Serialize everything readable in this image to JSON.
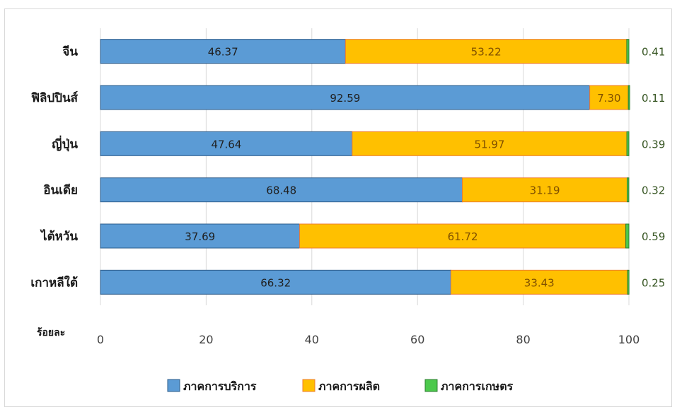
{
  "chart_data": {
    "type": "bar",
    "orientation": "horizontal",
    "stacked": true,
    "categories": [
      "จีน",
      "ฟิลิปปินส์",
      "ญี่ปุ่น",
      "อินเดีย",
      "ไต้หวัน",
      "เกาหลีใต้"
    ],
    "series": [
      {
        "name": "ภาคการบริการ",
        "values": [
          46.37,
          92.59,
          47.64,
          68.48,
          37.69,
          66.32
        ],
        "labels": [
          "46.37",
          "92.59",
          "47.64",
          "68.48",
          "37.69",
          "66.32"
        ],
        "color": "#5b9bd5",
        "stroke": "#2e5c8a",
        "label_color": "#1f1f1f"
      },
      {
        "name": "ภาคการผลิต",
        "values": [
          53.22,
          7.3,
          51.97,
          31.19,
          61.72,
          33.43
        ],
        "labels": [
          "53.22",
          "7.30",
          "51.97",
          "31.19",
          "61.72",
          "33.43"
        ],
        "color": "#ffc000",
        "stroke": "#ed7d31",
        "label_color": "#7f4f00"
      },
      {
        "name": "ภาคการเกษตร",
        "values": [
          0.41,
          0.11,
          0.39,
          0.32,
          0.59,
          0.25
        ],
        "labels": [
          "0.41",
          "0.11",
          "0.39",
          "0.32",
          "0.59",
          "0.25"
        ],
        "color": "#4cc94c",
        "stroke": "#2e7d32",
        "label_color": "#375623"
      }
    ],
    "xlim": [
      0,
      100
    ],
    "xticks": [
      "0",
      "20",
      "40",
      "60",
      "80",
      "100"
    ],
    "xlabel": "ร้อยละ",
    "grid": true,
    "legend_position": "bottom"
  }
}
